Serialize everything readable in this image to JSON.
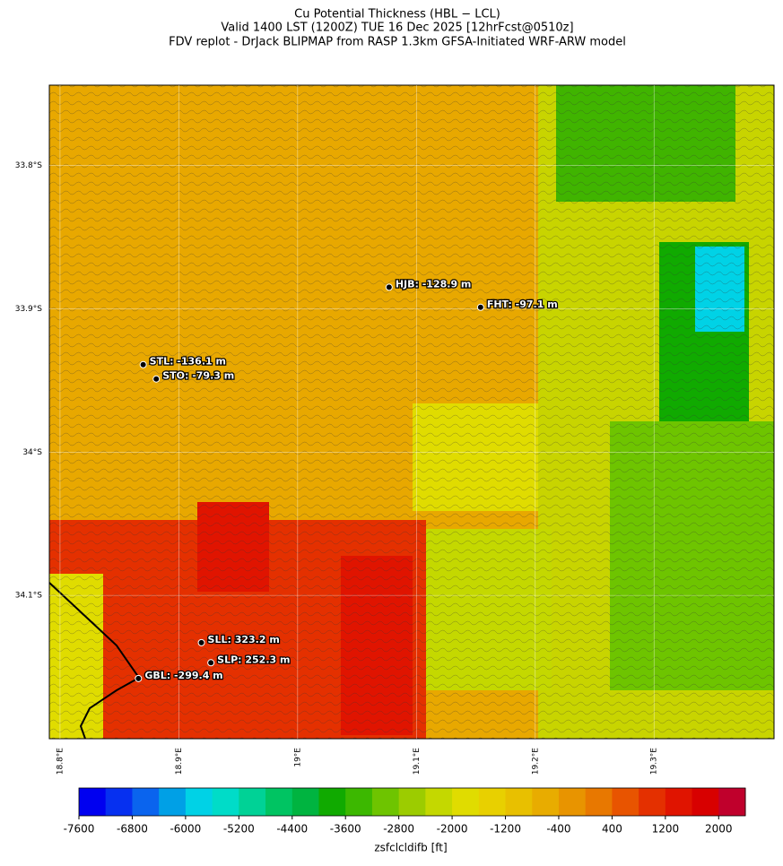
{
  "chart_data": {
    "type": "map",
    "title": "Cu Potential Thickness (HBL − LCL)",
    "subtitle": "Valid 1400 LST (1200Z) TUE 16 Dec 2025 [12hrFcst@0510z]",
    "subtitle2": "FDV replot - DrJack BLIPMAP from RASP 1.3km GFSA-Initiated WRF-ARW model",
    "xlim": [
      18.791,
      19.401
    ],
    "ylim": [
      -34.2,
      -33.744
    ],
    "xticks": [
      {
        "value": 18.8,
        "label": "18.8°E"
      },
      {
        "value": 18.9,
        "label": "18.9°E"
      },
      {
        "value": 19.0,
        "label": "19°E"
      },
      {
        "value": 19.1,
        "label": "19.1°E"
      },
      {
        "value": 19.2,
        "label": "19.2°E"
      },
      {
        "value": 19.3,
        "label": "19.3°E"
      }
    ],
    "yticks": [
      {
        "value": -33.8,
        "label": "33.8°S"
      },
      {
        "value": -33.9,
        "label": "33.9°S"
      },
      {
        "value": -34.0,
        "label": "34°S"
      },
      {
        "value": -34.1,
        "label": "34.1°S"
      }
    ],
    "stations": [
      {
        "label": "HJB: -128.9 m",
        "lon": 19.077,
        "lat": -33.885
      },
      {
        "label": "FHT: -97.1 m",
        "lon": 19.154,
        "lat": -33.899
      },
      {
        "label": "STL: -136.1 m",
        "lon": 18.87,
        "lat": -33.939
      },
      {
        "label": "STO: -79.3 m",
        "lon": 18.881,
        "lat": -33.949
      },
      {
        "label": "SLL: 323.2 m",
        "lon": 18.919,
        "lat": -34.133
      },
      {
        "label": "SLP: 252.3 m",
        "lon": 18.927,
        "lat": -34.147
      },
      {
        "label": "GBL: -299.4 m",
        "lon": 18.866,
        "lat": -34.158
      }
    ],
    "colorbar": {
      "label": "zsfclcldifb [ft]",
      "lim": [
        -7600,
        2400
      ],
      "ticks": [
        -7600,
        -6800,
        -6000,
        -5200,
        -4400,
        -3600,
        -2800,
        -2000,
        -1200,
        -400,
        400,
        1200,
        2000
      ],
      "colors": [
        "#0000f0",
        "#0630f0",
        "#0a64ee",
        "#00a0e6",
        "#00d2e6",
        "#00dcc8",
        "#00d296",
        "#00c462",
        "#00b440",
        "#10aa00",
        "#3cb800",
        "#6ec400",
        "#9ccc00",
        "#c4d800",
        "#e0dc00",
        "#e8d000",
        "#e8c000",
        "#e8ac00",
        "#e89400",
        "#e87800",
        "#e85400",
        "#e43000",
        "#e01400",
        "#d80000",
        "#c0002c"
      ]
    }
  }
}
